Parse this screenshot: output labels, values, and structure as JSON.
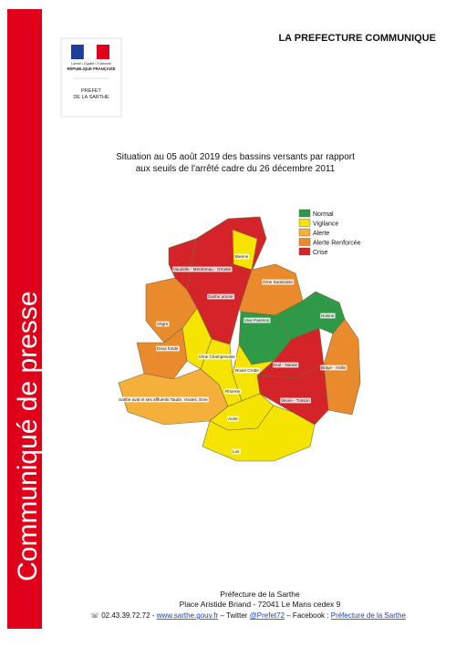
{
  "sidebar": {
    "title": "Communiqué de presse"
  },
  "logo": {
    "motto": "Liberté • Égalité • Fraternité",
    "republic": "RÉPUBLIQUE FRANÇAISE",
    "prefect_lines": [
      "PRÉFET",
      "DE LA SARTHE"
    ]
  },
  "header": {
    "title": "LA PREFECTURE COMMUNIQUE"
  },
  "map": {
    "title_lines": [
      "Situation au 05 août 2019 des bassins versants par rapport",
      "aux seuils de l'arrêté cadre du 26 décembre 2011"
    ],
    "legend": [
      {
        "label": "Normal",
        "color": "#2e9a48"
      },
      {
        "label": "Vigilance",
        "color": "#f4e400"
      },
      {
        "label": "Alerte",
        "color": "#f5b03c"
      },
      {
        "label": "Alerte Renforcée",
        "color": "#e98a2c"
      },
      {
        "label": "Crise",
        "color": "#d5232a"
      }
    ],
    "regions": [
      {
        "label": "Sarthe amont",
        "color": "#d5232a"
      },
      {
        "label": "Vaudelle - Merdereau - Ornette",
        "color": "#d5232a"
      },
      {
        "label": "Bienne",
        "color": "#f4e400"
      },
      {
        "label": "Orne Saosnoise",
        "color": "#e98a2c"
      },
      {
        "label": "Huisne",
        "color": "#2e9a48"
      },
      {
        "label": "Vive Parence",
        "color": "#2e9a48"
      },
      {
        "label": "Braye - Anille",
        "color": "#e98a2c"
      },
      {
        "label": "Dué - Narais",
        "color": "#d5232a"
      },
      {
        "label": "Veuve - Tusson",
        "color": "#d5232a"
      },
      {
        "label": "Roule Crotte",
        "color": "#f4e400"
      },
      {
        "label": "Rhonne",
        "color": "#f4e400"
      },
      {
        "label": "Orne Champenoise",
        "color": "#f4e400"
      },
      {
        "label": "Vègre",
        "color": "#e98a2c"
      },
      {
        "label": "Deux fonds",
        "color": "#e98a2c"
      },
      {
        "label": "Sarthe aval et ses affluents Taude, Voutes, Erve",
        "color": "#f5b03c"
      },
      {
        "label": "Aune",
        "color": "#f4e400"
      },
      {
        "label": "Loir",
        "color": "#f4e400"
      }
    ]
  },
  "footer": {
    "lines": [
      "Préfecture de la Sarthe",
      "Place Aristide Briand - 72041 Le Mans cedex 9"
    ],
    "contact": [
      "☏ 02.43.39.72.72 - ",
      "www.sarthe.gouv.fr",
      " – Twitter ",
      "@Prefet72",
      " – Facebook : ",
      "Préfecture de la Sarthe"
    ]
  }
}
